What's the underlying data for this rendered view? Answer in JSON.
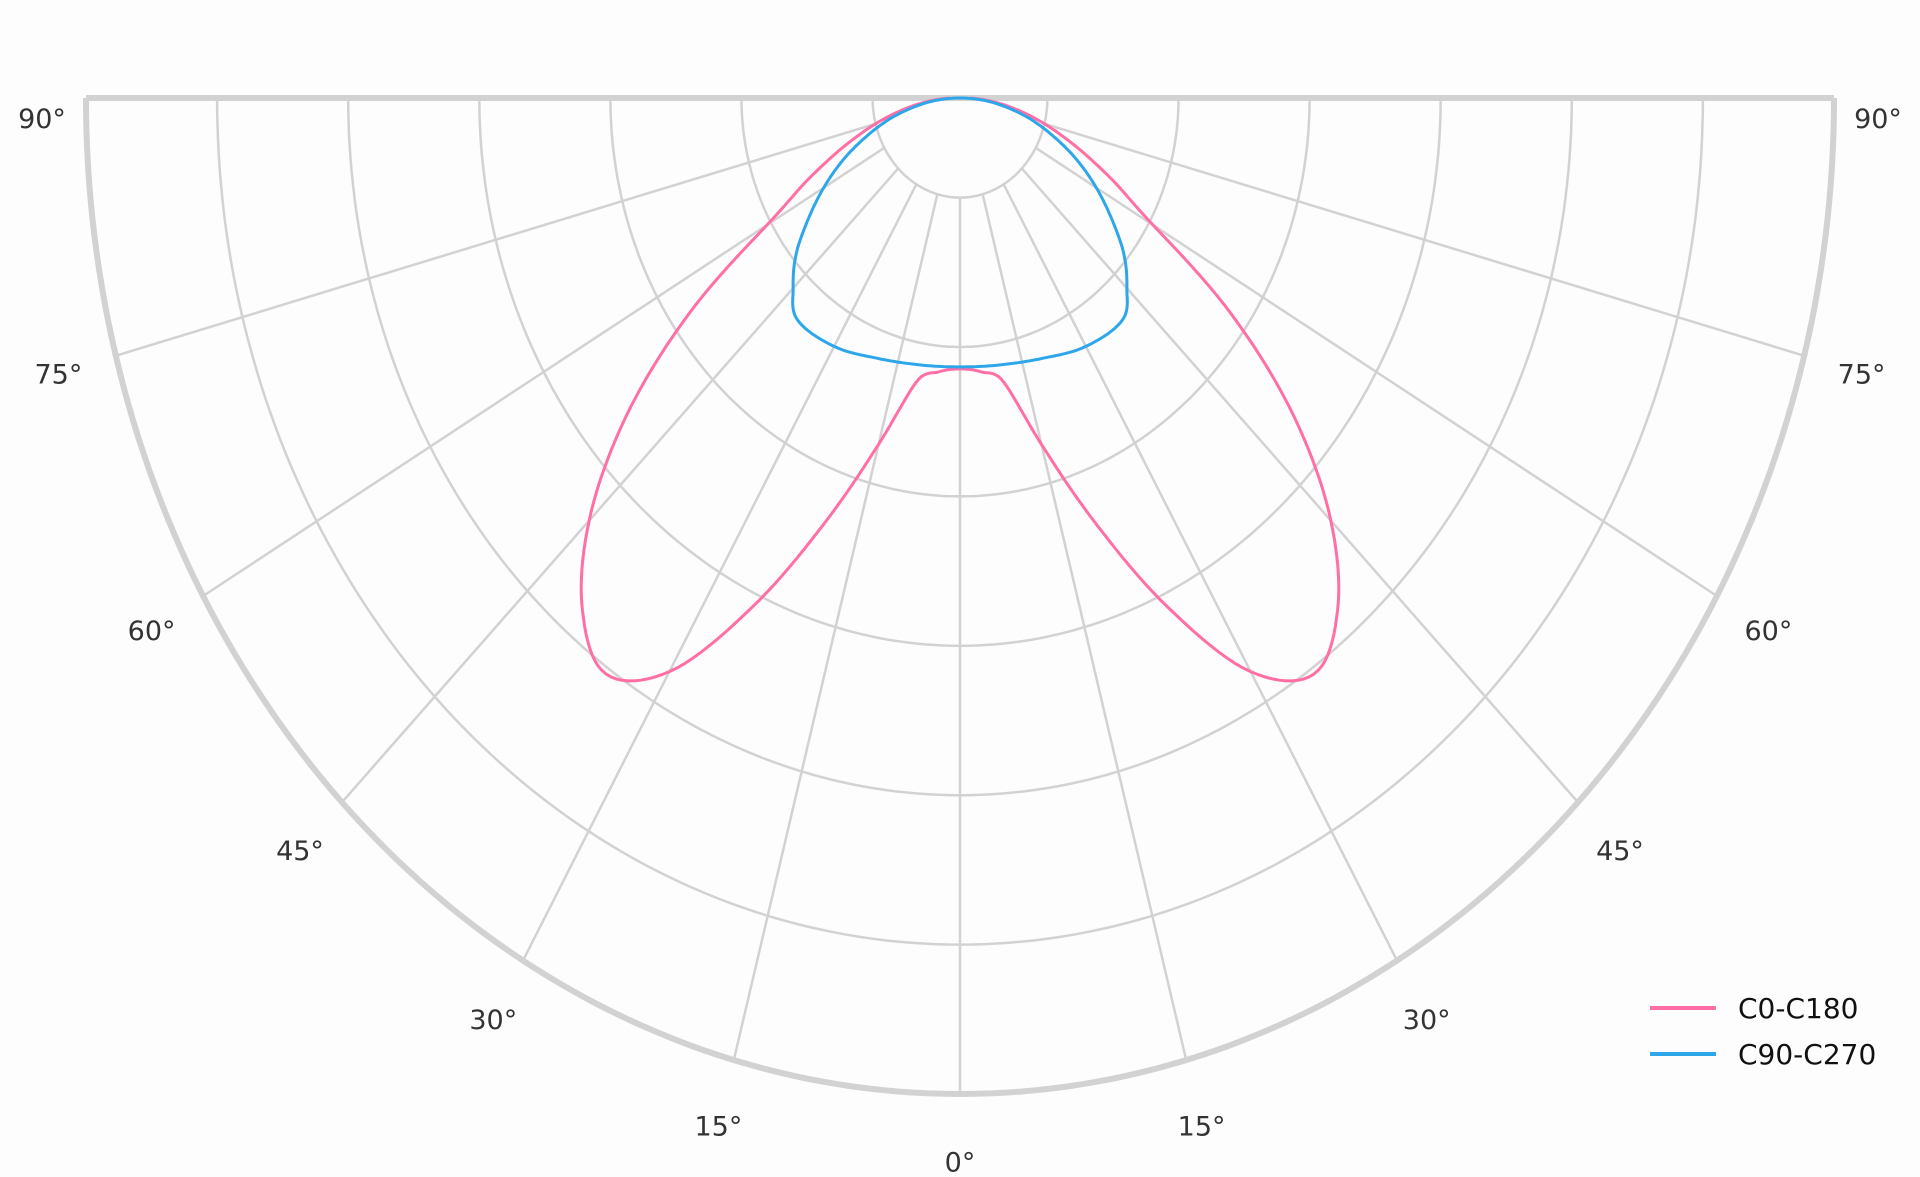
{
  "chart_data": {
    "type": "polar",
    "title": "",
    "angle_unit": "degrees",
    "angle_zero": "bottom",
    "angle_range": [
      -90,
      90
    ],
    "angle_tick_labels": [
      "90°",
      "75°",
      "60°",
      "45°",
      "30°",
      "15°",
      "0°",
      "15°",
      "30°",
      "45°",
      "60°",
      "75°",
      "90°"
    ],
    "angle_ticks": [
      -90,
      -75,
      -60,
      -45,
      -30,
      -15,
      0,
      15,
      30,
      45,
      60,
      75,
      90
    ],
    "radial_range": [
      0,
      1
    ],
    "radial_gridlines": [
      0.1,
      0.25,
      0.4,
      0.55,
      0.7,
      0.85,
      1.0
    ],
    "radial_tick_labels_shown": false,
    "grid": true,
    "legend_position": "bottom-right",
    "series": [
      {
        "name": "C0-C180",
        "color": "#ff6fa6",
        "angles": [
          0,
          5,
          10,
          15,
          20,
          25,
          30,
          35,
          40,
          45,
          50,
          55,
          60,
          65,
          70,
          75,
          80,
          85,
          88,
          90
        ],
        "values": [
          0.272,
          0.276,
          0.29,
          0.36,
          0.455,
          0.565,
          0.665,
          0.706,
          0.672,
          0.6,
          0.5,
          0.38,
          0.255,
          0.19,
          0.14,
          0.1,
          0.065,
          0.035,
          0.02,
          0.012
        ],
        "symmetric": true
      },
      {
        "name": "C90-C270",
        "color": "#2ea6ea",
        "angles": [
          0,
          10,
          20,
          30,
          40,
          45,
          50,
          55,
          60,
          65,
          70,
          75,
          80,
          85,
          90
        ],
        "values": [
          0.27,
          0.272,
          0.278,
          0.288,
          0.29,
          0.27,
          0.245,
          0.212,
          0.18,
          0.148,
          0.115,
          0.085,
          0.055,
          0.028,
          0.0
        ],
        "symmetric": true
      }
    ]
  }
}
